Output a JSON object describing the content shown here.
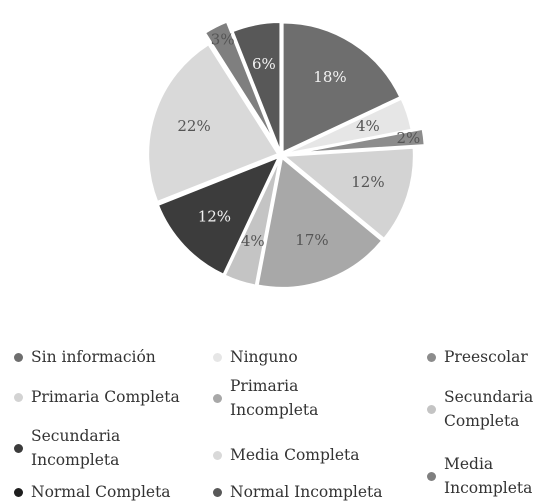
{
  "chart_data": {
    "type": "pie",
    "categories": [
      "Sin información",
      "Ninguno",
      "Preescolar",
      "Primaria Completa",
      "Primaria Incompleta",
      "Secundaria Completa",
      "Secundaria Incompleta",
      "Media Completa",
      "Media Incompleta",
      "Normal Completa",
      "Normal Incompleta"
    ],
    "values": [
      18,
      4,
      2,
      12,
      17,
      4,
      12,
      22,
      3,
      null,
      6
    ],
    "value_labels": [
      "18%",
      "4%",
      "2%",
      "12%",
      "17%",
      "4%",
      "12%",
      "22%",
      "3%",
      null,
      "6%"
    ],
    "colors": [
      "#6e6e6e",
      "#e6e6e6",
      "#8c8c8c",
      "#d3d3d3",
      "#a8a8a8",
      "#c4c4c4",
      "#3c3c3c",
      "#d9d9d9",
      "#7f7f7f",
      "#1e1e1e",
      "#585858"
    ],
    "legend": "bottom"
  }
}
